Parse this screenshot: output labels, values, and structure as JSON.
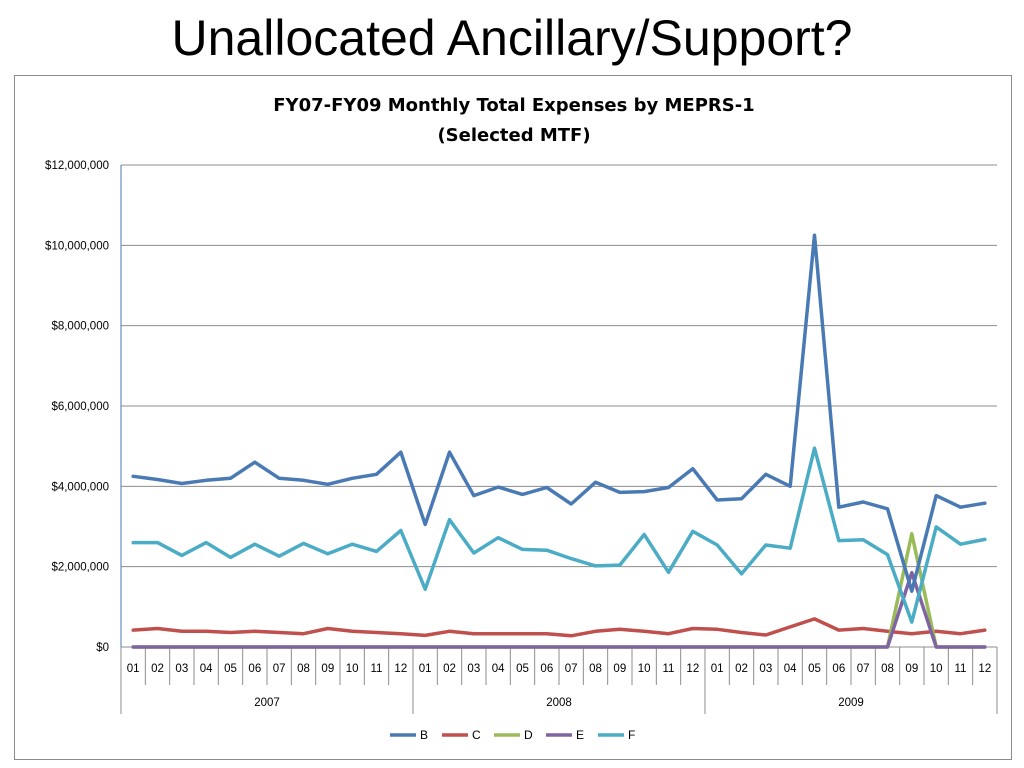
{
  "slide": {
    "title": "Unallocated Ancillary/Support?"
  },
  "chart_data": {
    "type": "line",
    "title": "FY07-FY09 Monthly Total Expenses by MEPRS-1",
    "subtitle": "(Selected MTF)",
    "xlabel": "",
    "ylabel": "",
    "ylim": [
      0,
      12000000
    ],
    "yticks": [
      "$0",
      "$2,000,000",
      "$4,000,000",
      "$6,000,000",
      "$8,000,000",
      "$10,000,000",
      "$12,000,000"
    ],
    "ytick_values": [
      0,
      2000000,
      4000000,
      6000000,
      8000000,
      10000000,
      12000000
    ],
    "grid": true,
    "legend": "bottom",
    "years": [
      "2007",
      "2008",
      "2009"
    ],
    "months": [
      "01",
      "02",
      "03",
      "04",
      "05",
      "06",
      "07",
      "08",
      "09",
      "10",
      "11",
      "12"
    ],
    "series": [
      {
        "name": "B",
        "color": "#4a7ab4",
        "values": [
          4250000,
          4170000,
          4070000,
          4150000,
          4200000,
          4600000,
          4200000,
          4150000,
          4050000,
          4200000,
          4300000,
          4850000,
          3050000,
          4850000,
          3770000,
          3980000,
          3800000,
          3970000,
          3560000,
          4100000,
          3850000,
          3870000,
          3970000,
          4440000,
          3660000,
          3690000,
          4300000,
          4000000,
          10250000,
          3480000,
          3610000,
          3440000,
          1390000,
          3770000,
          3480000,
          3580000
        ]
      },
      {
        "name": "C",
        "color": "#c0504d",
        "values": [
          420000,
          460000,
          390000,
          390000,
          360000,
          390000,
          360000,
          330000,
          460000,
          390000,
          360000,
          330000,
          290000,
          390000,
          330000,
          330000,
          330000,
          330000,
          280000,
          390000,
          440000,
          390000,
          330000,
          460000,
          440000,
          360000,
          300000,
          500000,
          700000,
          420000,
          460000,
          390000,
          330000,
          390000,
          330000,
          420000
        ]
      },
      {
        "name": "D",
        "color": "#9bbb59",
        "values": [
          0,
          0,
          0,
          0,
          0,
          0,
          0,
          0,
          0,
          0,
          0,
          0,
          0,
          0,
          0,
          0,
          0,
          0,
          0,
          0,
          0,
          0,
          0,
          0,
          0,
          0,
          0,
          0,
          0,
          0,
          0,
          0,
          2820000,
          0,
          0,
          0
        ]
      },
      {
        "name": "E",
        "color": "#8064a2",
        "values": [
          0,
          0,
          0,
          0,
          0,
          0,
          0,
          0,
          0,
          0,
          0,
          0,
          0,
          0,
          0,
          0,
          0,
          0,
          0,
          0,
          0,
          0,
          0,
          0,
          0,
          0,
          0,
          0,
          0,
          0,
          0,
          0,
          1850000,
          0,
          0,
          0
        ]
      },
      {
        "name": "F",
        "color": "#4bacc6",
        "values": [
          2600000,
          2600000,
          2280000,
          2600000,
          2230000,
          2560000,
          2260000,
          2580000,
          2320000,
          2560000,
          2380000,
          2900000,
          1440000,
          3170000,
          2340000,
          2720000,
          2430000,
          2410000,
          2200000,
          2020000,
          2040000,
          2800000,
          1860000,
          2880000,
          2540000,
          1820000,
          2540000,
          2460000,
          4950000,
          2650000,
          2670000,
          2300000,
          620000,
          2990000,
          2560000,
          2680000
        ]
      }
    ]
  }
}
